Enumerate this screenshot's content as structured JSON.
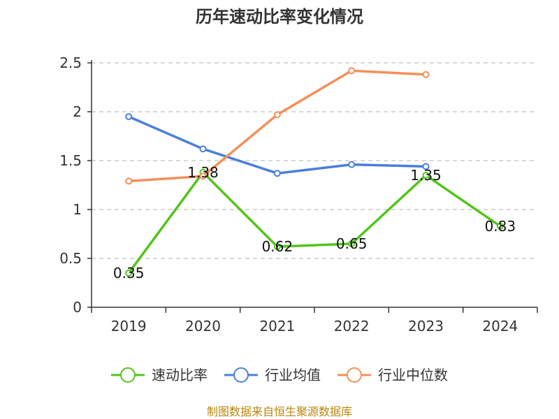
{
  "chart_data": {
    "type": "line",
    "title": "历年速动比率变化情况",
    "categories": [
      "2019",
      "2020",
      "2021",
      "2022",
      "2023",
      "2024"
    ],
    "y_ticks": [
      "0",
      "0.5",
      "1",
      "1.5",
      "2",
      "2.5"
    ],
    "ylim": [
      0,
      2.5
    ],
    "grid": true,
    "legend_position": "bottom",
    "series": [
      {
        "name": "速动比率",
        "color": "#52c41a",
        "values": [
          0.35,
          1.38,
          0.62,
          0.65,
          1.35,
          0.83
        ],
        "labels": [
          "0.35",
          "1.38",
          "0.62",
          "0.65",
          "1.35",
          "0.83"
        ]
      },
      {
        "name": "行业均值",
        "color": "#4a7fdb",
        "values": [
          1.95,
          1.62,
          1.37,
          1.46,
          1.44,
          null
        ]
      },
      {
        "name": "行业中位数",
        "color": "#f4905a",
        "values": [
          1.29,
          1.34,
          1.97,
          2.42,
          2.38,
          null
        ]
      }
    ]
  },
  "source": "制图数据来自恒生聚源数据库"
}
